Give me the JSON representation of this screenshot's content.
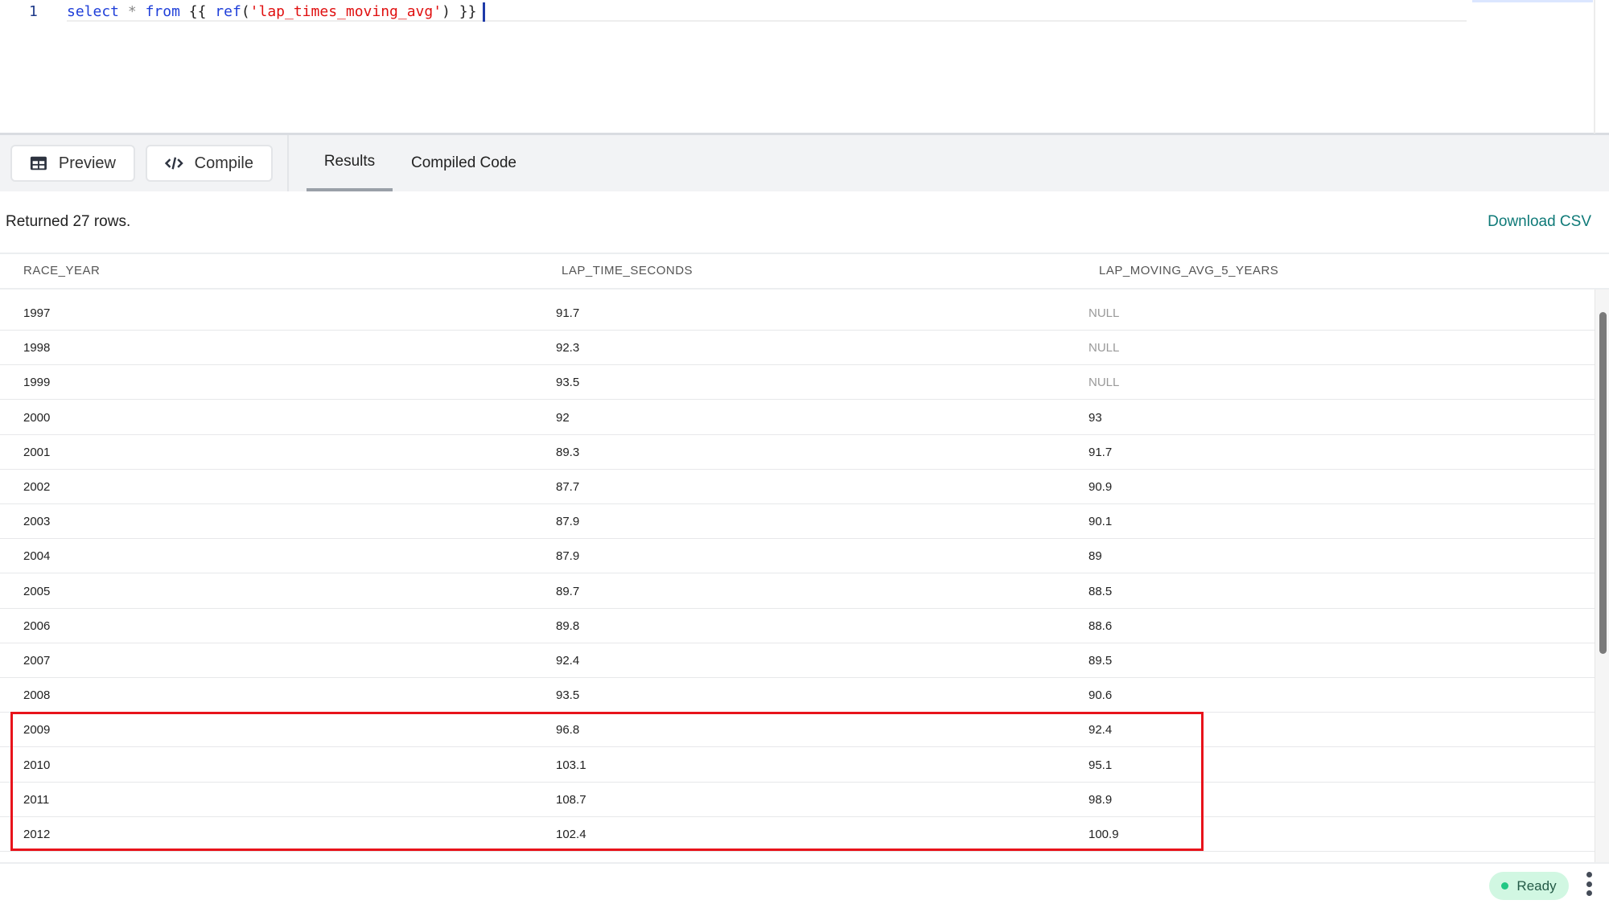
{
  "editor": {
    "line_number": "1",
    "code": {
      "kw1": "select",
      "op": "*",
      "kw2": "from",
      "open": "{{",
      "fn": "ref",
      "paren_open": "(",
      "model": "'lap_times_moving_avg'",
      "paren_close": ")",
      "close": "}}"
    }
  },
  "toolbar": {
    "preview_label": "Preview",
    "compile_label": "Compile",
    "tabs": [
      {
        "label": "Results",
        "active": true
      },
      {
        "label": "Compiled Code",
        "active": false
      }
    ]
  },
  "results": {
    "summary": "Returned 27 rows.",
    "download_label": "Download CSV",
    "columns": [
      "RACE_YEAR",
      "LAP_TIME_SECONDS",
      "LAP_MOVING_AVG_5_YEARS"
    ],
    "rows": [
      [
        "1997",
        "91.7",
        "NULL"
      ],
      [
        "1998",
        "92.3",
        "NULL"
      ],
      [
        "1999",
        "93.5",
        "NULL"
      ],
      [
        "2000",
        "92",
        "93"
      ],
      [
        "2001",
        "89.3",
        "91.7"
      ],
      [
        "2002",
        "87.7",
        "90.9"
      ],
      [
        "2003",
        "87.9",
        "90.1"
      ],
      [
        "2004",
        "87.9",
        "89"
      ],
      [
        "2005",
        "89.7",
        "88.5"
      ],
      [
        "2006",
        "89.8",
        "88.6"
      ],
      [
        "2007",
        "92.4",
        "89.5"
      ],
      [
        "2008",
        "93.5",
        "90.6"
      ],
      [
        "2009",
        "96.8",
        "92.4"
      ],
      [
        "2010",
        "103.1",
        "95.1"
      ],
      [
        "2011",
        "108.7",
        "98.9"
      ],
      [
        "2012",
        "102.4",
        "100.9"
      ]
    ],
    "highlight_color": "#e8131b"
  },
  "status": {
    "label": "Ready",
    "color": "#22c784"
  }
}
